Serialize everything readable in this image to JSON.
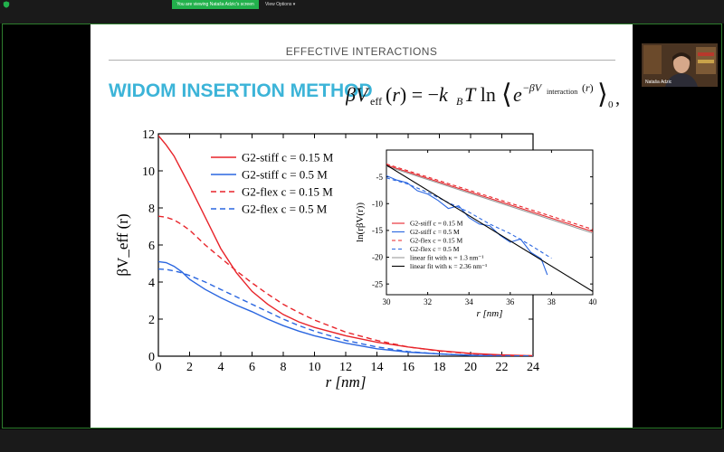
{
  "zoom_bar": {
    "viewing_text": "You are viewing Nataša Adzic's screen",
    "view_options_label": "View Options",
    "badge_color": "#22b14c"
  },
  "participant": {
    "name": "Nataša Adzic"
  },
  "slide": {
    "header": "EFFECTIVE INTERACTIONS",
    "title": "WIDOM INSERTION METHOD",
    "title_color": "#3cb4d8"
  },
  "chart_data": [
    {
      "type": "line",
      "xlabel": "r [nm]",
      "ylabel": "βV_eff (r)",
      "xlim": [
        0,
        24
      ],
      "ylim": [
        0,
        12
      ],
      "xticks": [
        0,
        2,
        4,
        6,
        8,
        10,
        12,
        14,
        16,
        18,
        20,
        22,
        24
      ],
      "yticks": [
        0,
        2,
        4,
        6,
        8,
        10,
        12
      ],
      "legend_position": "top-right",
      "series": [
        {
          "name": "G2-stiff  c = 0.15 M",
          "color": "#e8242a",
          "dash": "solid",
          "x": [
            0,
            0.5,
            1,
            1.5,
            2,
            3,
            4,
            5,
            6,
            7,
            8,
            9,
            10,
            12,
            14,
            16,
            18,
            20,
            22,
            24
          ],
          "y": [
            11.9,
            11.4,
            10.8,
            10.0,
            9.2,
            7.5,
            5.8,
            4.5,
            3.5,
            2.8,
            2.25,
            1.85,
            1.55,
            1.1,
            0.75,
            0.5,
            0.3,
            0.15,
            0.07,
            0.02
          ]
        },
        {
          "name": "G2-stiff  c = 0.5 M",
          "color": "#2a66e0",
          "dash": "solid",
          "x": [
            0,
            0.5,
            1,
            1.5,
            2,
            3,
            4,
            5,
            6,
            7,
            8,
            9,
            10,
            12,
            14,
            16,
            18,
            20,
            22,
            24
          ],
          "y": [
            5.1,
            5.05,
            4.85,
            4.55,
            4.15,
            3.6,
            3.15,
            2.75,
            2.4,
            2.0,
            1.65,
            1.35,
            1.1,
            0.7,
            0.4,
            0.22,
            0.12,
            0.05,
            0.02,
            0.01
          ]
        },
        {
          "name": "G2-flex  c = 0.15 M",
          "color": "#e8242a",
          "dash": "dashed",
          "x": [
            0,
            0.5,
            1,
            1.5,
            2,
            3,
            4,
            5,
            6,
            7,
            8,
            9,
            10,
            12,
            14,
            16,
            18,
            20,
            22,
            24
          ],
          "y": [
            7.55,
            7.5,
            7.35,
            7.1,
            6.8,
            6.0,
            5.3,
            4.6,
            3.95,
            3.35,
            2.8,
            2.35,
            1.95,
            1.3,
            0.85,
            0.5,
            0.28,
            0.13,
            0.05,
            0.02
          ]
        },
        {
          "name": "G2-flex  c = 0.5 M",
          "color": "#2a66e0",
          "dash": "dashed",
          "x": [
            0,
            0.5,
            1,
            1.5,
            2,
            3,
            4,
            5,
            6,
            7,
            8,
            9,
            10,
            12,
            14,
            16,
            18,
            20,
            22,
            24
          ],
          "y": [
            4.7,
            4.68,
            4.6,
            4.5,
            4.35,
            4.0,
            3.6,
            3.2,
            2.8,
            2.4,
            2.0,
            1.65,
            1.35,
            0.85,
            0.5,
            0.25,
            0.12,
            0.05,
            0.02,
            0.01
          ]
        }
      ]
    },
    {
      "type": "line",
      "xlabel": "r [nm]",
      "ylabel": "ln(rβV(r))",
      "xlim": [
        30,
        40
      ],
      "ylim": [
        -27,
        0
      ],
      "xticks": [
        30,
        32,
        34,
        36,
        38,
        40
      ],
      "yticks": [
        -25,
        -20,
        -15,
        -10,
        -5
      ],
      "legend_position": "bottom-left",
      "series": [
        {
          "name": "G2-stiff  c = 0.15 M",
          "color": "#e8242a",
          "dash": "solid",
          "x": [
            30,
            40
          ],
          "y": [
            -2.8,
            -15.2
          ]
        },
        {
          "name": "G2-stiff  c = 0.5 M",
          "color": "#2a66e0",
          "dash": "solid",
          "x": [
            30,
            30.5,
            31,
            31.5,
            32,
            32.5,
            33,
            33.5,
            34,
            34.5,
            35,
            35.5,
            36,
            36.5,
            37,
            37.5,
            37.8
          ],
          "y": [
            -4.8,
            -5.6,
            -6.1,
            -7.6,
            -8.2,
            -9.4,
            -10.9,
            -10.4,
            -12.6,
            -13.8,
            -14.1,
            -15.9,
            -17.2,
            -16.6,
            -19.1,
            -20.3,
            -23.3
          ]
        },
        {
          "name": "G2-flex  c = 0.15 M",
          "color": "#e8242a",
          "dash": "dashed",
          "x": [
            30,
            40
          ],
          "y": [
            -2.6,
            -14.8
          ]
        },
        {
          "name": "G2-flex  c = 0.5 M",
          "color": "#2a66e0",
          "dash": "dashed",
          "x": [
            30,
            31,
            32,
            33,
            34,
            35,
            36,
            37,
            38
          ],
          "y": [
            -5.2,
            -6.3,
            -7.9,
            -9.8,
            -11.6,
            -13.8,
            -15.6,
            -17.8,
            -20.2
          ]
        },
        {
          "name": "linear fit with κ = 1.3 nm⁻¹",
          "color": "#9a9a9a",
          "dash": "solid",
          "x": [
            30,
            40
          ],
          "y": [
            -3.0,
            -15.5
          ]
        },
        {
          "name": "linear fit with κ = 2.36 nm⁻¹",
          "color": "#000000",
          "dash": "solid",
          "x": [
            30,
            40
          ],
          "y": [
            -2.8,
            -26.4
          ]
        }
      ]
    }
  ]
}
